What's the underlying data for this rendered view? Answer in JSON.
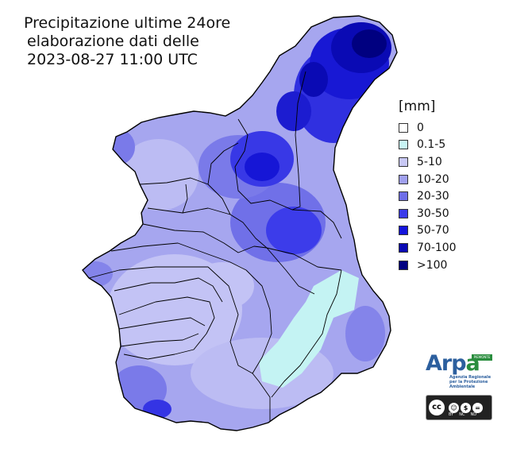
{
  "title": {
    "line1": "Precipitazione ultime 24ore",
    "line2": "elaborazione dati delle",
    "line3": "2023-08-27 11:00 UTC"
  },
  "legend": {
    "unit": "[mm]",
    "classes": [
      {
        "label": "0",
        "color": "#ffffff"
      },
      {
        "label": "0.1-5",
        "color": "#c8f5f5"
      },
      {
        "label": "5-10",
        "color": "#c8c8f5"
      },
      {
        "label": "10-20",
        "color": "#a0a0ee"
      },
      {
        "label": "20-30",
        "color": "#6e6ee8"
      },
      {
        "label": "30-50",
        "color": "#3c3cea"
      },
      {
        "label": "50-70",
        "color": "#1414dc"
      },
      {
        "label": "70-100",
        "color": "#0a0ab4"
      },
      {
        "label": ">100",
        "color": "#000080"
      }
    ]
  },
  "logo": {
    "name_part1": "Arp",
    "name_part2": "a",
    "subtitle": "Agenzia Regionale per la Protezione Ambientale",
    "tag": "PIEMONTE"
  },
  "license": {
    "cc": "cc",
    "labels": [
      "BY",
      "NC",
      "ND"
    ]
  }
}
